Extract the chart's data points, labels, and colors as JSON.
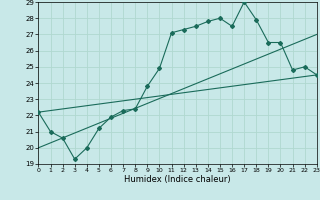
{
  "title": "",
  "xlabel": "Humidex (Indice chaleur)",
  "ylabel": "",
  "bg_color": "#c8e8e8",
  "grid_color": "#b0d8d0",
  "line_color": "#1a6b5a",
  "x_min": 0,
  "x_max": 23,
  "y_min": 19,
  "y_max": 29,
  "curve1_x": [
    0,
    1,
    2,
    3,
    4,
    5,
    6,
    7,
    8,
    9,
    10,
    11,
    12,
    13,
    14,
    15,
    16,
    17,
    18,
    19,
    20,
    21,
    22,
    23
  ],
  "curve1_y": [
    22.2,
    21.0,
    20.6,
    19.3,
    20.0,
    21.2,
    21.9,
    22.3,
    22.4,
    23.8,
    24.9,
    27.1,
    27.3,
    27.5,
    27.8,
    28.0,
    27.5,
    29.0,
    27.9,
    26.5,
    26.5,
    24.8,
    25.0,
    24.5
  ],
  "curve2_x": [
    0,
    23
  ],
  "curve2_y": [
    20.0,
    27.0
  ],
  "curve3_x": [
    0,
    23
  ],
  "curve3_y": [
    22.2,
    24.5
  ]
}
